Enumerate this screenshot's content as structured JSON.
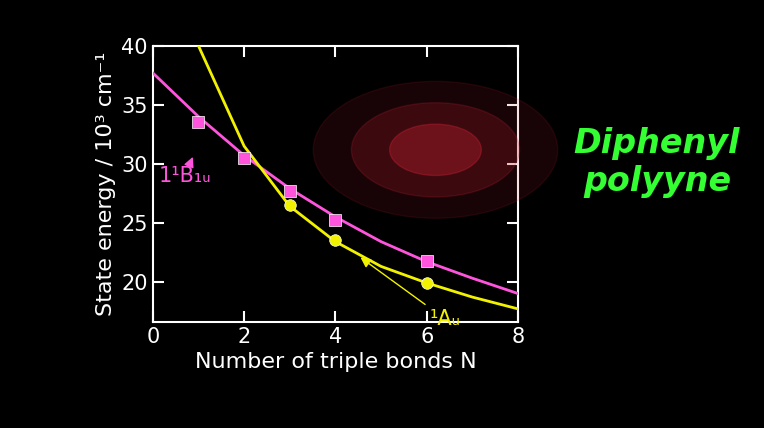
{
  "chart_data": {
    "type": "line",
    "x_label": "Number of triple bonds N",
    "y_label": "State energy / 10³ cm⁻¹",
    "xlim": [
      0,
      8
    ],
    "xticks": [
      0,
      2,
      4,
      6,
      8
    ],
    "ylim": [
      16.6,
      40
    ],
    "yticks": [
      20,
      25,
      30,
      35,
      40
    ],
    "grid": false,
    "series": [
      {
        "name": "1¹B₁ᵤ",
        "type": "scatter",
        "marker": "square",
        "color": "#ff55dd",
        "x": [
          1,
          2,
          3,
          4,
          6
        ],
        "values": [
          33.5,
          30.5,
          27.7,
          25.2,
          21.8
        ]
      },
      {
        "type": "line",
        "line_style": "solid",
        "color": "#ff55dd",
        "x": [
          0,
          1,
          2,
          3,
          4,
          5,
          6,
          7,
          8
        ],
        "values": [
          37.7,
          34.0,
          30.7,
          27.9,
          25.5,
          23.4,
          21.7,
          20.3,
          19.0
        ]
      },
      {
        "name": "¹Aᵤ",
        "type": "scatter",
        "marker": "circle",
        "color": "#f2f200",
        "x": [
          3,
          4,
          6
        ],
        "values": [
          26.5,
          23.5,
          19.9
        ]
      },
      {
        "type": "line",
        "line_style": "solid",
        "color": "#f2f200",
        "x": [
          1,
          2,
          3,
          4,
          5,
          6,
          7,
          8
        ],
        "values": [
          40.0,
          31.5,
          26.4,
          23.4,
          21.3,
          19.9,
          18.7,
          17.7
        ]
      }
    ],
    "annotations": [
      {
        "text": "Diphenyl\npolyyne",
        "color": "#33ff33"
      }
    ]
  }
}
